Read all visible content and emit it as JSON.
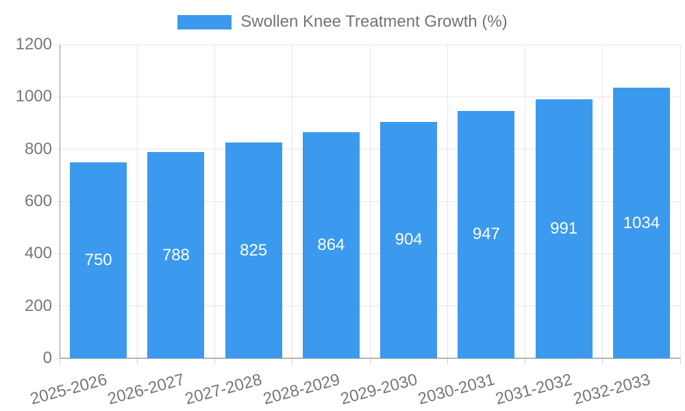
{
  "chart_data": {
    "type": "bar",
    "title": "",
    "legend_label": "Swollen Knee Treatment Growth (%)",
    "legend_position": "top",
    "categories": [
      "2025-2026",
      "2026-2027",
      "2027-2028",
      "2028-2029",
      "2029-2030",
      "2030-2031",
      "2031-2032",
      "2032-2033"
    ],
    "values": [
      750,
      788,
      825,
      864,
      904,
      947,
      991,
      1034
    ],
    "xlabel": "",
    "ylabel": "",
    "ylim": [
      0,
      1200
    ],
    "yticks": [
      0,
      200,
      400,
      600,
      800,
      1000,
      1200
    ],
    "grid": true,
    "bar_color": "#3B99EE",
    "bar_label_color": "#FFFFFF",
    "axis_text_color": "#777777",
    "legend_text_color": "#737373",
    "grid_color": "#E7E7E7"
  }
}
